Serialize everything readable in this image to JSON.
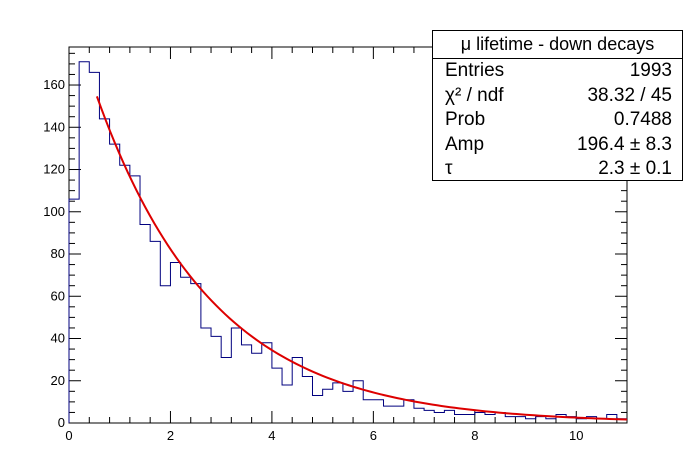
{
  "chart_data": {
    "type": "histogram",
    "title": "",
    "xlabel": "",
    "ylabel": "",
    "xlim": [
      0,
      11
    ],
    "ylim": [
      0,
      178
    ],
    "x_ticks": [
      0,
      2,
      4,
      6,
      8,
      10
    ],
    "y_ticks": [
      0,
      20,
      40,
      60,
      80,
      100,
      120,
      140,
      160
    ],
    "bin_edges_start": 0,
    "bin_width": 0.2,
    "counts": [
      106,
      171,
      166,
      144,
      132,
      122,
      117,
      94,
      86,
      65,
      76,
      69,
      66,
      45,
      41,
      31,
      45,
      37,
      33,
      38,
      26,
      18,
      31,
      22,
      13,
      16,
      19,
      15,
      20,
      11,
      11,
      8,
      8,
      11,
      7,
      6,
      5,
      6,
      4,
      4,
      5,
      4,
      5,
      3,
      3,
      2,
      3,
      2,
      4,
      3,
      2,
      3,
      2,
      4,
      2
    ],
    "histogram_color": "#00007f",
    "fit": {
      "function": "Amp * exp(-t / tau)",
      "amp": 196.4,
      "tau": 2.3,
      "x_range": [
        0.55,
        11
      ],
      "color": "#dd0000"
    },
    "stats": {
      "title": "μ lifetime - down decays",
      "rows": [
        {
          "label": "Entries",
          "value": "1993"
        },
        {
          "label": "χ² / ndf",
          "value": "38.32 / 45"
        },
        {
          "label": "Prob",
          "value": "0.7488"
        },
        {
          "label": "Amp",
          "value": "196.4 ± 8.3"
        },
        {
          "label": "τ",
          "value": "2.3 ± 0.1"
        }
      ]
    }
  }
}
